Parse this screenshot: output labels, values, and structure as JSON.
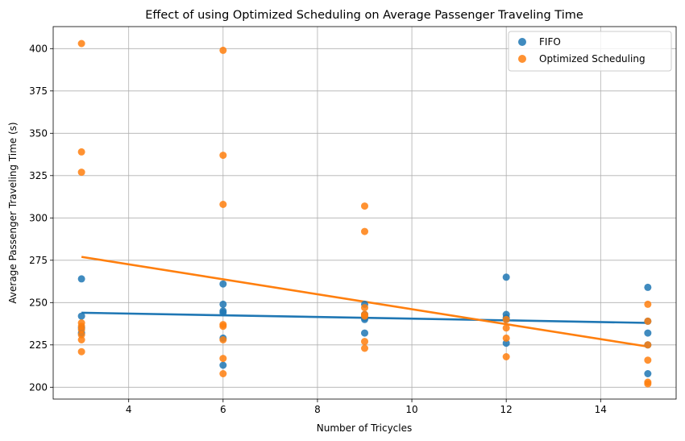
{
  "chart_data": {
    "type": "scatter",
    "title": "Effect of using Optimized Scheduling on Average Passenger Traveling Time",
    "xlabel": "Number of Tricycles",
    "ylabel": "Average Passenger Traveling Time (s)",
    "xlim": [
      2.4,
      15.6
    ],
    "ylim": [
      193,
      413
    ],
    "xticks": [
      4,
      6,
      8,
      10,
      12,
      14
    ],
    "yticks": [
      200,
      225,
      250,
      275,
      300,
      325,
      350,
      375,
      400
    ],
    "grid": true,
    "legend_position": "top-right",
    "series": [
      {
        "name": "FIFO",
        "color": "#1f77b4",
        "points": [
          [
            3,
            264
          ],
          [
            3,
            242
          ],
          [
            3,
            235
          ],
          [
            3,
            232
          ],
          [
            6,
            261
          ],
          [
            6,
            249
          ],
          [
            6,
            245
          ],
          [
            6,
            244
          ],
          [
            6,
            229
          ],
          [
            6,
            213
          ],
          [
            9,
            249
          ],
          [
            9,
            243
          ],
          [
            9,
            241
          ],
          [
            9,
            240
          ],
          [
            9,
            232
          ],
          [
            12,
            265
          ],
          [
            12,
            243
          ],
          [
            12,
            241
          ],
          [
            12,
            240
          ],
          [
            12,
            226
          ],
          [
            15,
            259
          ],
          [
            15,
            239
          ],
          [
            15,
            232
          ],
          [
            15,
            225
          ],
          [
            15,
            208
          ]
        ],
        "trend": {
          "x": [
            3,
            15
          ],
          "y": [
            244,
            238
          ]
        }
      },
      {
        "name": "Optimized Scheduling",
        "color": "#ff7f0e",
        "points": [
          [
            3,
            403
          ],
          [
            3,
            339
          ],
          [
            3,
            327
          ],
          [
            3,
            238
          ],
          [
            3,
            236
          ],
          [
            3,
            234
          ],
          [
            3,
            231
          ],
          [
            3,
            228
          ],
          [
            3,
            221
          ],
          [
            6,
            399
          ],
          [
            6,
            337
          ],
          [
            6,
            308
          ],
          [
            6,
            237
          ],
          [
            6,
            236
          ],
          [
            6,
            228
          ],
          [
            6,
            217
          ],
          [
            6,
            208
          ],
          [
            9,
            307
          ],
          [
            9,
            292
          ],
          [
            9,
            247
          ],
          [
            9,
            243
          ],
          [
            9,
            242
          ],
          [
            9,
            227
          ],
          [
            9,
            223
          ],
          [
            12,
            240
          ],
          [
            12,
            235
          ],
          [
            12,
            229
          ],
          [
            12,
            218
          ],
          [
            15,
            249
          ],
          [
            15,
            239
          ],
          [
            15,
            225
          ],
          [
            15,
            216
          ],
          [
            15,
            203
          ],
          [
            15,
            202
          ]
        ],
        "trend": {
          "x": [
            3,
            15
          ],
          "y": [
            277,
            224
          ]
        }
      }
    ]
  }
}
